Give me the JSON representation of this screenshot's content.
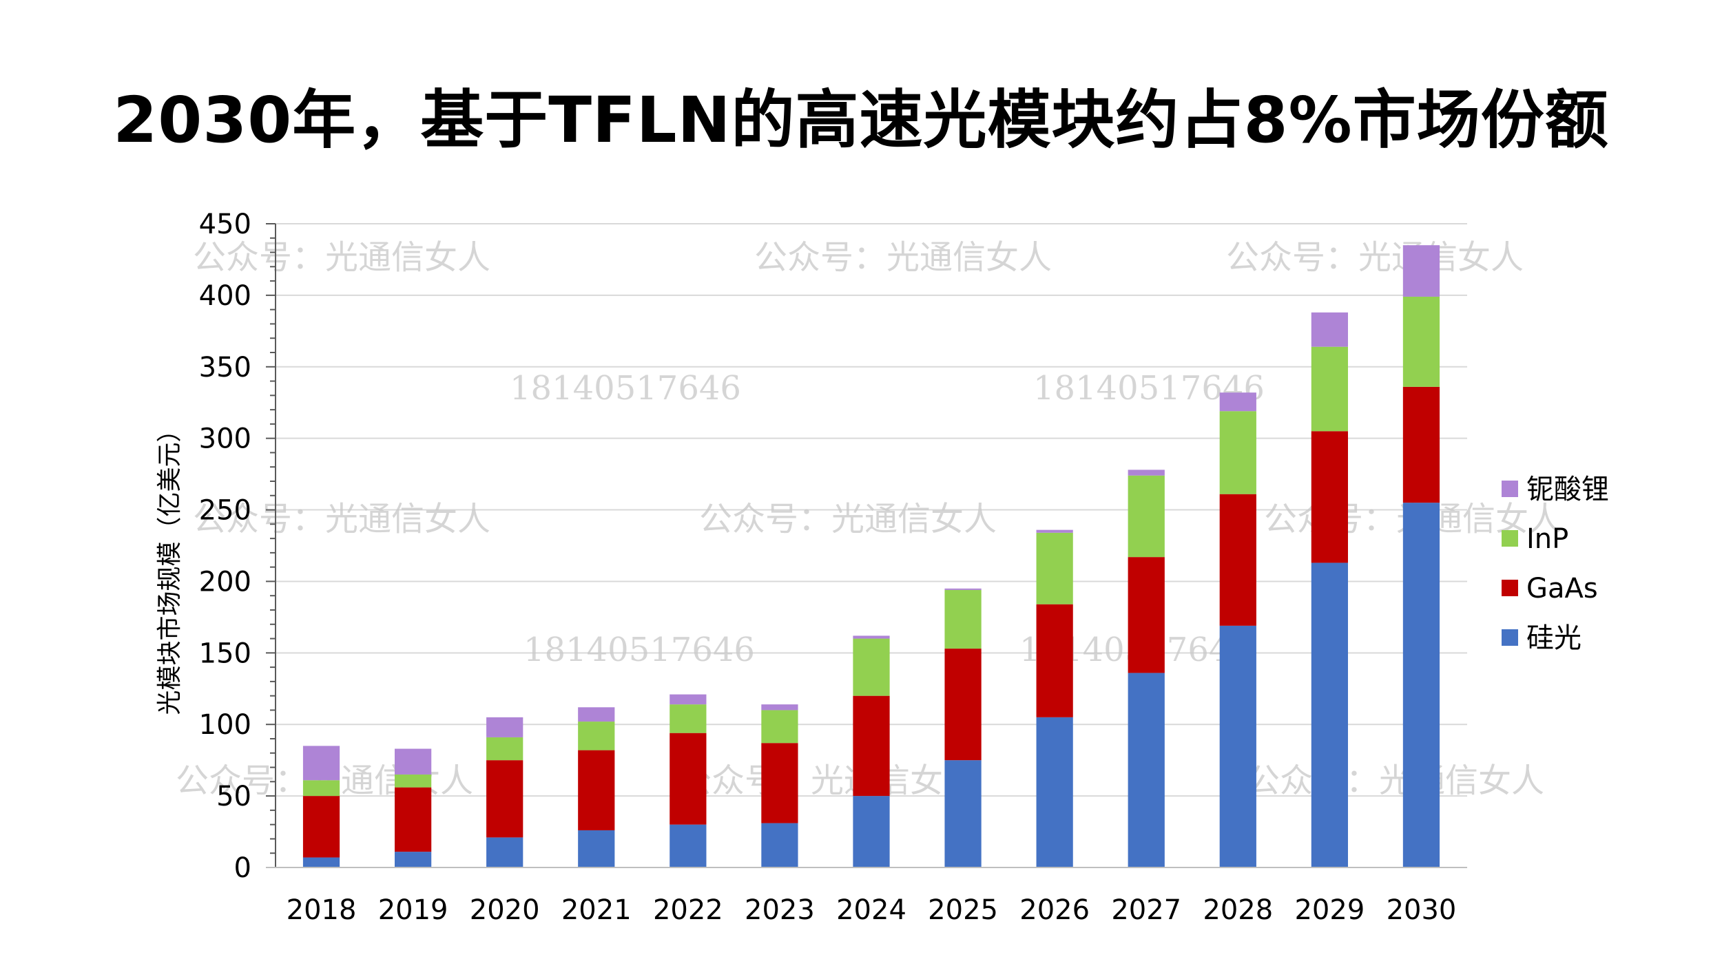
{
  "title": "2030年，基于TFLN的高速光模块约占8%市场份额",
  "watermarks": [
    "公众号：光通信女人",
    "18140517646"
  ],
  "chart_data": {
    "type": "stacked-bar",
    "title": "2030年，基于TFLN的高速光模块约占8%市场份额",
    "xlabel": "",
    "ylabel": "光模块市场规模（亿美元）",
    "ylim": [
      0,
      450
    ],
    "yticks": [
      "0",
      "50",
      "100",
      "150",
      "200",
      "250",
      "300",
      "350",
      "400",
      "450"
    ],
    "grid": true,
    "legend_position": "right",
    "categories": [
      "2018",
      "2019",
      "2020",
      "2021",
      "2022",
      "2023",
      "2024",
      "2025",
      "2026",
      "2027",
      "2028",
      "2029",
      "2030"
    ],
    "series": [
      {
        "name": "硅光",
        "color": "#4472C4",
        "values": [
          7,
          11,
          21,
          26,
          30,
          31,
          50,
          75,
          105,
          136,
          169,
          213,
          255
        ]
      },
      {
        "name": "GaAs",
        "color": "#C00000",
        "values": [
          43,
          45,
          54,
          56,
          64,
          56,
          70,
          78,
          79,
          81,
          92,
          92,
          81
        ]
      },
      {
        "name": "InP",
        "color": "#92D050",
        "values": [
          11,
          9,
          16,
          20,
          20,
          23,
          40,
          41,
          50,
          57,
          58,
          59,
          63
        ]
      },
      {
        "name": "铌酸锂",
        "color": "#AE84D6",
        "values": [
          24,
          18,
          14,
          10,
          7,
          4,
          2,
          1,
          2,
          4,
          13,
          24,
          36
        ]
      }
    ]
  }
}
